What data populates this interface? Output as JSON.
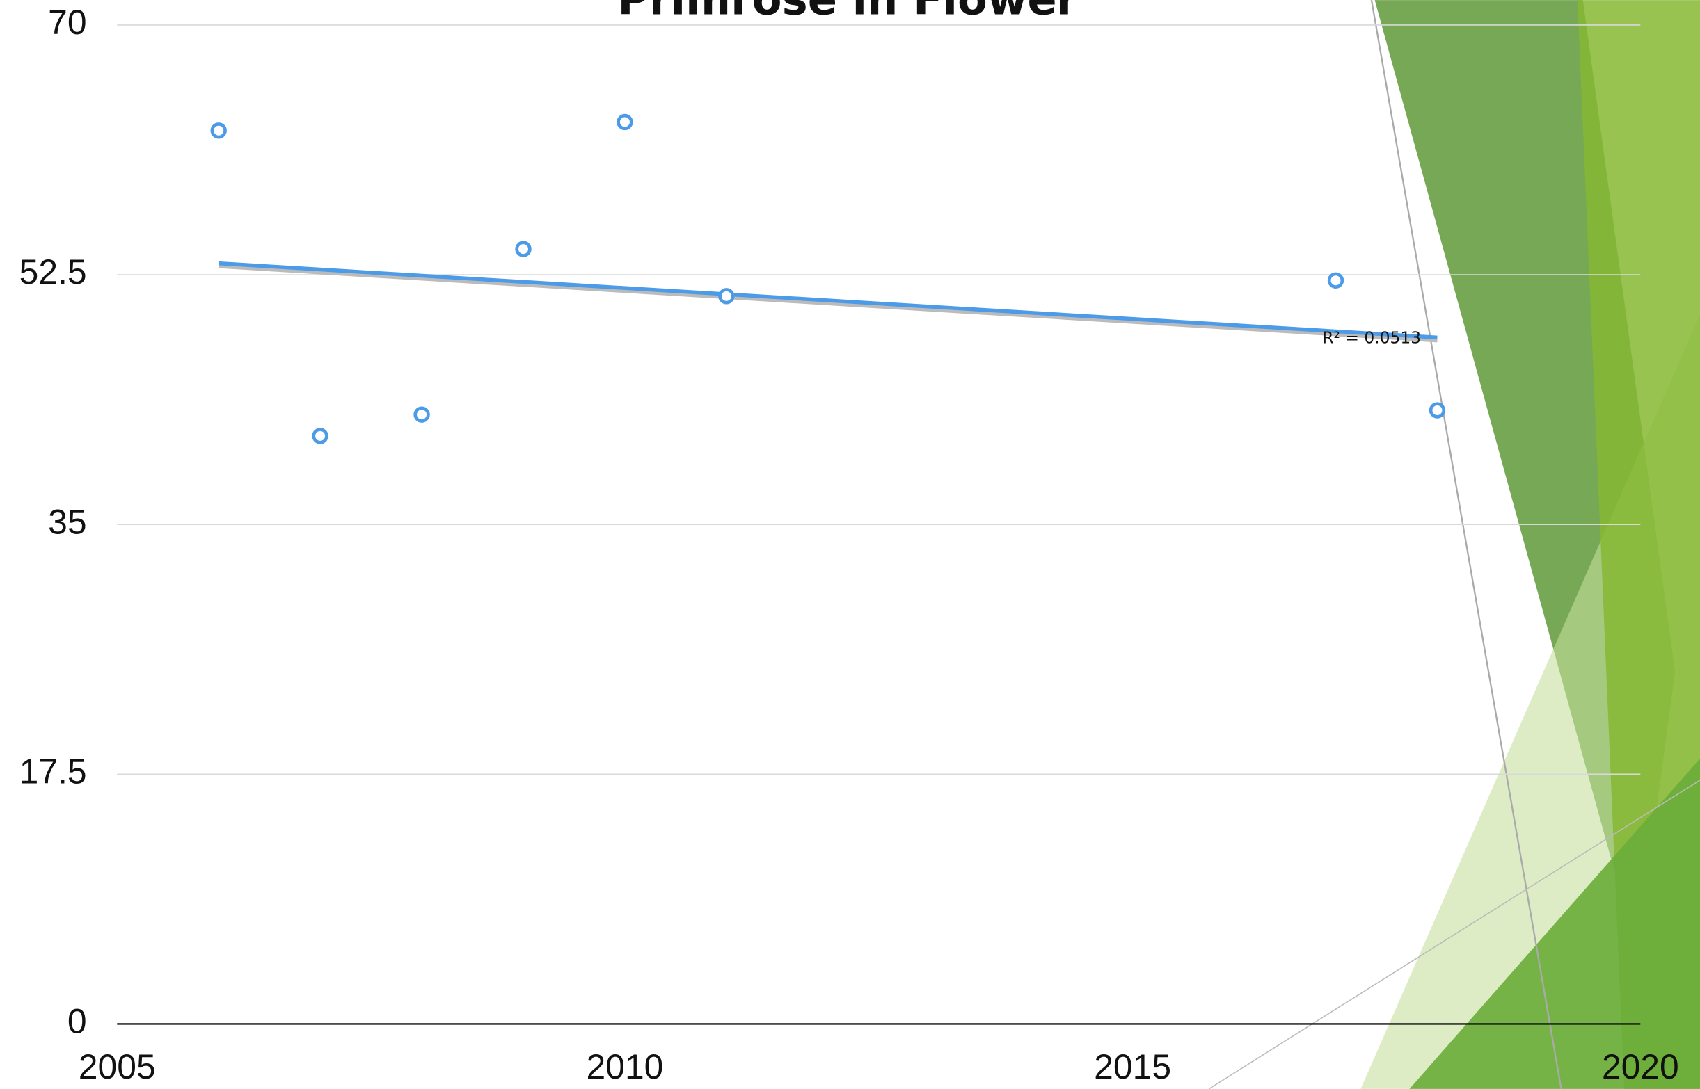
{
  "chart_data": {
    "type": "scatter",
    "title": "Primrose in Flower",
    "x": [
      2006,
      2007,
      2008,
      2009,
      2010,
      2011,
      2017,
      2018
    ],
    "series": [
      {
        "color": "#4c9be8",
        "values": [
          62.6,
          41.2,
          42.7,
          54.3,
          63.2,
          51.0,
          52.1,
          43.0
        ]
      }
    ],
    "trendline": {
      "x": [
        2006,
        2018
      ],
      "values": [
        53.3,
        48.1
      ],
      "label": "R² = 0.0513",
      "color": "#4c9be8"
    },
    "xlim": [
      2005,
      2020
    ],
    "xticks": [
      2005,
      2010,
      2015,
      2020
    ],
    "ylim": [
      0,
      70
    ],
    "yticks": [
      0,
      17.5,
      35,
      52.5,
      70
    ],
    "grid": true
  }
}
